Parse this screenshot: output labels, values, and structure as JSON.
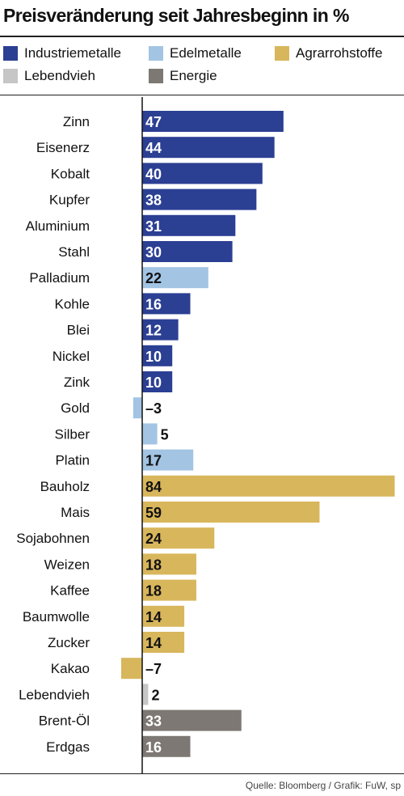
{
  "title": "Preisveränderung seit Jahresbeginn in %",
  "legend": [
    {
      "name": "Industriemetalle",
      "color": "#2b3f93"
    },
    {
      "name": "Edelmetalle",
      "color": "#a3c4e3"
    },
    {
      "name": "Agrarrohstoffe",
      "color": "#d8b65c"
    },
    {
      "name": "Lebendvieh",
      "color": "#c6c6c6"
    },
    {
      "name": "Energie",
      "color": "#7d7873"
    }
  ],
  "source": "Quelle: Bloomberg / Grafik: FuW, sp",
  "chart_data": {
    "type": "bar",
    "orientation": "horizontal",
    "categories": [
      "Zinn",
      "Eisenerz",
      "Kobalt",
      "Kupfer",
      "Aluminium",
      "Stahl",
      "Palladium",
      "Kohle",
      "Blei",
      "Nickel",
      "Zink",
      "Gold",
      "Silber",
      "Platin",
      "Bauholz",
      "Mais",
      "Sojabohnen",
      "Weizen",
      "Kaffee",
      "Baumwolle",
      "Zucker",
      "Kakao",
      "Lebendvieh",
      "Brent-Öl",
      "Erdgas"
    ],
    "values": [
      47,
      44,
      40,
      38,
      31,
      30,
      22,
      16,
      12,
      10,
      10,
      -3,
      5,
      17,
      84,
      59,
      24,
      18,
      18,
      14,
      14,
      -7,
      2,
      33,
      16
    ],
    "value_labels": [
      "47",
      "44",
      "40",
      "38",
      "31",
      "30",
      "22",
      "16",
      "12",
      "10",
      "10",
      "–3",
      "5",
      "17",
      "84",
      "59",
      "24",
      "18",
      "18",
      "14",
      "14",
      "–7",
      "2",
      "33",
      "16"
    ],
    "groups": [
      "Industriemetalle",
      "Industriemetalle",
      "Industriemetalle",
      "Industriemetalle",
      "Industriemetalle",
      "Industriemetalle",
      "Edelmetalle",
      "Industriemetalle",
      "Industriemetalle",
      "Industriemetalle",
      "Industriemetalle",
      "Edelmetalle",
      "Edelmetalle",
      "Edelmetalle",
      "Agrarrohstoffe",
      "Agrarrohstoffe",
      "Agrarrohstoffe",
      "Agrarrohstoffe",
      "Agrarrohstoffe",
      "Agrarrohstoffe",
      "Agrarrohstoffe",
      "Agrarrohstoffe",
      "Lebendvieh",
      "Energie",
      "Energie"
    ],
    "grid": false,
    "legend_position": "top",
    "xlim": [
      -7,
      84
    ]
  }
}
